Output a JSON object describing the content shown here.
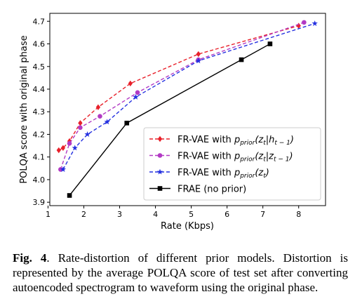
{
  "chart_data": {
    "type": "line",
    "xlabel": "Rate (Kbps)",
    "ylabel": "POLQA score with original phase",
    "xlim": [
      1.05,
      8.75
    ],
    "ylim": [
      3.885,
      4.735
    ],
    "xticks": [
      1,
      2,
      3,
      4,
      5,
      6,
      7,
      8
    ],
    "yticks": [
      3.9,
      4.0,
      4.1,
      4.2,
      4.3,
      4.4,
      4.5,
      4.6,
      4.7
    ],
    "ytick_labels": [
      "3.9",
      "4.0",
      "4.1",
      "4.2",
      "4.3",
      "4.4",
      "4.5",
      "4.6",
      "4.7"
    ],
    "grid": false,
    "legend_position": "lower-right",
    "series": [
      {
        "name": "FR-VAE with p_prior(z_t|h_{t-1})",
        "legend_main": "FR-VAE with ",
        "legend_p": "p",
        "legend_sub": "prior",
        "legend_rest": "(z",
        "legend_sub2": "t",
        "legend_mid": "|h",
        "legend_sub3": "t − 1",
        "legend_end": ")",
        "color": "#e8202a",
        "marker": "diamond",
        "dashed": true,
        "x": [
          1.3,
          1.42,
          1.6,
          1.9,
          2.4,
          3.3,
          5.2,
          8.0
        ],
        "y": [
          4.13,
          4.14,
          4.17,
          4.25,
          4.32,
          4.425,
          4.555,
          4.68
        ]
      },
      {
        "name": "FR-VAE with p_prior(z_t|z_{t-1})",
        "legend_main": "FR-VAE with ",
        "legend_p": "p",
        "legend_sub": "prior",
        "legend_rest": "(z",
        "legend_sub2": "t",
        "legend_mid": "|z",
        "legend_sub3": "t − 1",
        "legend_end": ")",
        "color": "#b23ac4",
        "marker": "circle",
        "dashed": true,
        "x": [
          1.35,
          1.6,
          1.9,
          2.45,
          3.5,
          5.2,
          8.15
        ],
        "y": [
          4.045,
          4.16,
          4.23,
          4.28,
          4.385,
          4.53,
          4.695
        ]
      },
      {
        "name": "FR-VAE with p_prior(z_t)",
        "legend_main": "FR-VAE with ",
        "legend_p": "p",
        "legend_sub": "prior",
        "legend_rest": "(z",
        "legend_sub2": "t",
        "legend_mid": "",
        "legend_sub3": "",
        "legend_end": ")",
        "color": "#2430e0",
        "marker": "star",
        "dashed": true,
        "x": [
          1.42,
          1.75,
          2.1,
          2.65,
          3.45,
          5.2,
          8.45
        ],
        "y": [
          4.045,
          4.14,
          4.2,
          4.255,
          4.365,
          4.525,
          4.69
        ]
      },
      {
        "name": "FRAE (no prior)",
        "legend_main": "FRAE (no prior)",
        "legend_p": "",
        "legend_sub": "",
        "legend_rest": "",
        "legend_sub2": "",
        "legend_mid": "",
        "legend_sub3": "",
        "legend_end": "",
        "color": "#000000",
        "marker": "square",
        "dashed": false,
        "x": [
          1.6,
          3.2,
          6.4,
          7.2
        ],
        "y": [
          3.93,
          4.25,
          4.53,
          4.6
        ]
      }
    ]
  },
  "caption": {
    "label": "Fig. 4",
    "text": ". Rate-distortion of different prior models. Distortion is represented by the average POLQA score of test set after converting autoencoded spectrogram to waveform using the original phase."
  }
}
